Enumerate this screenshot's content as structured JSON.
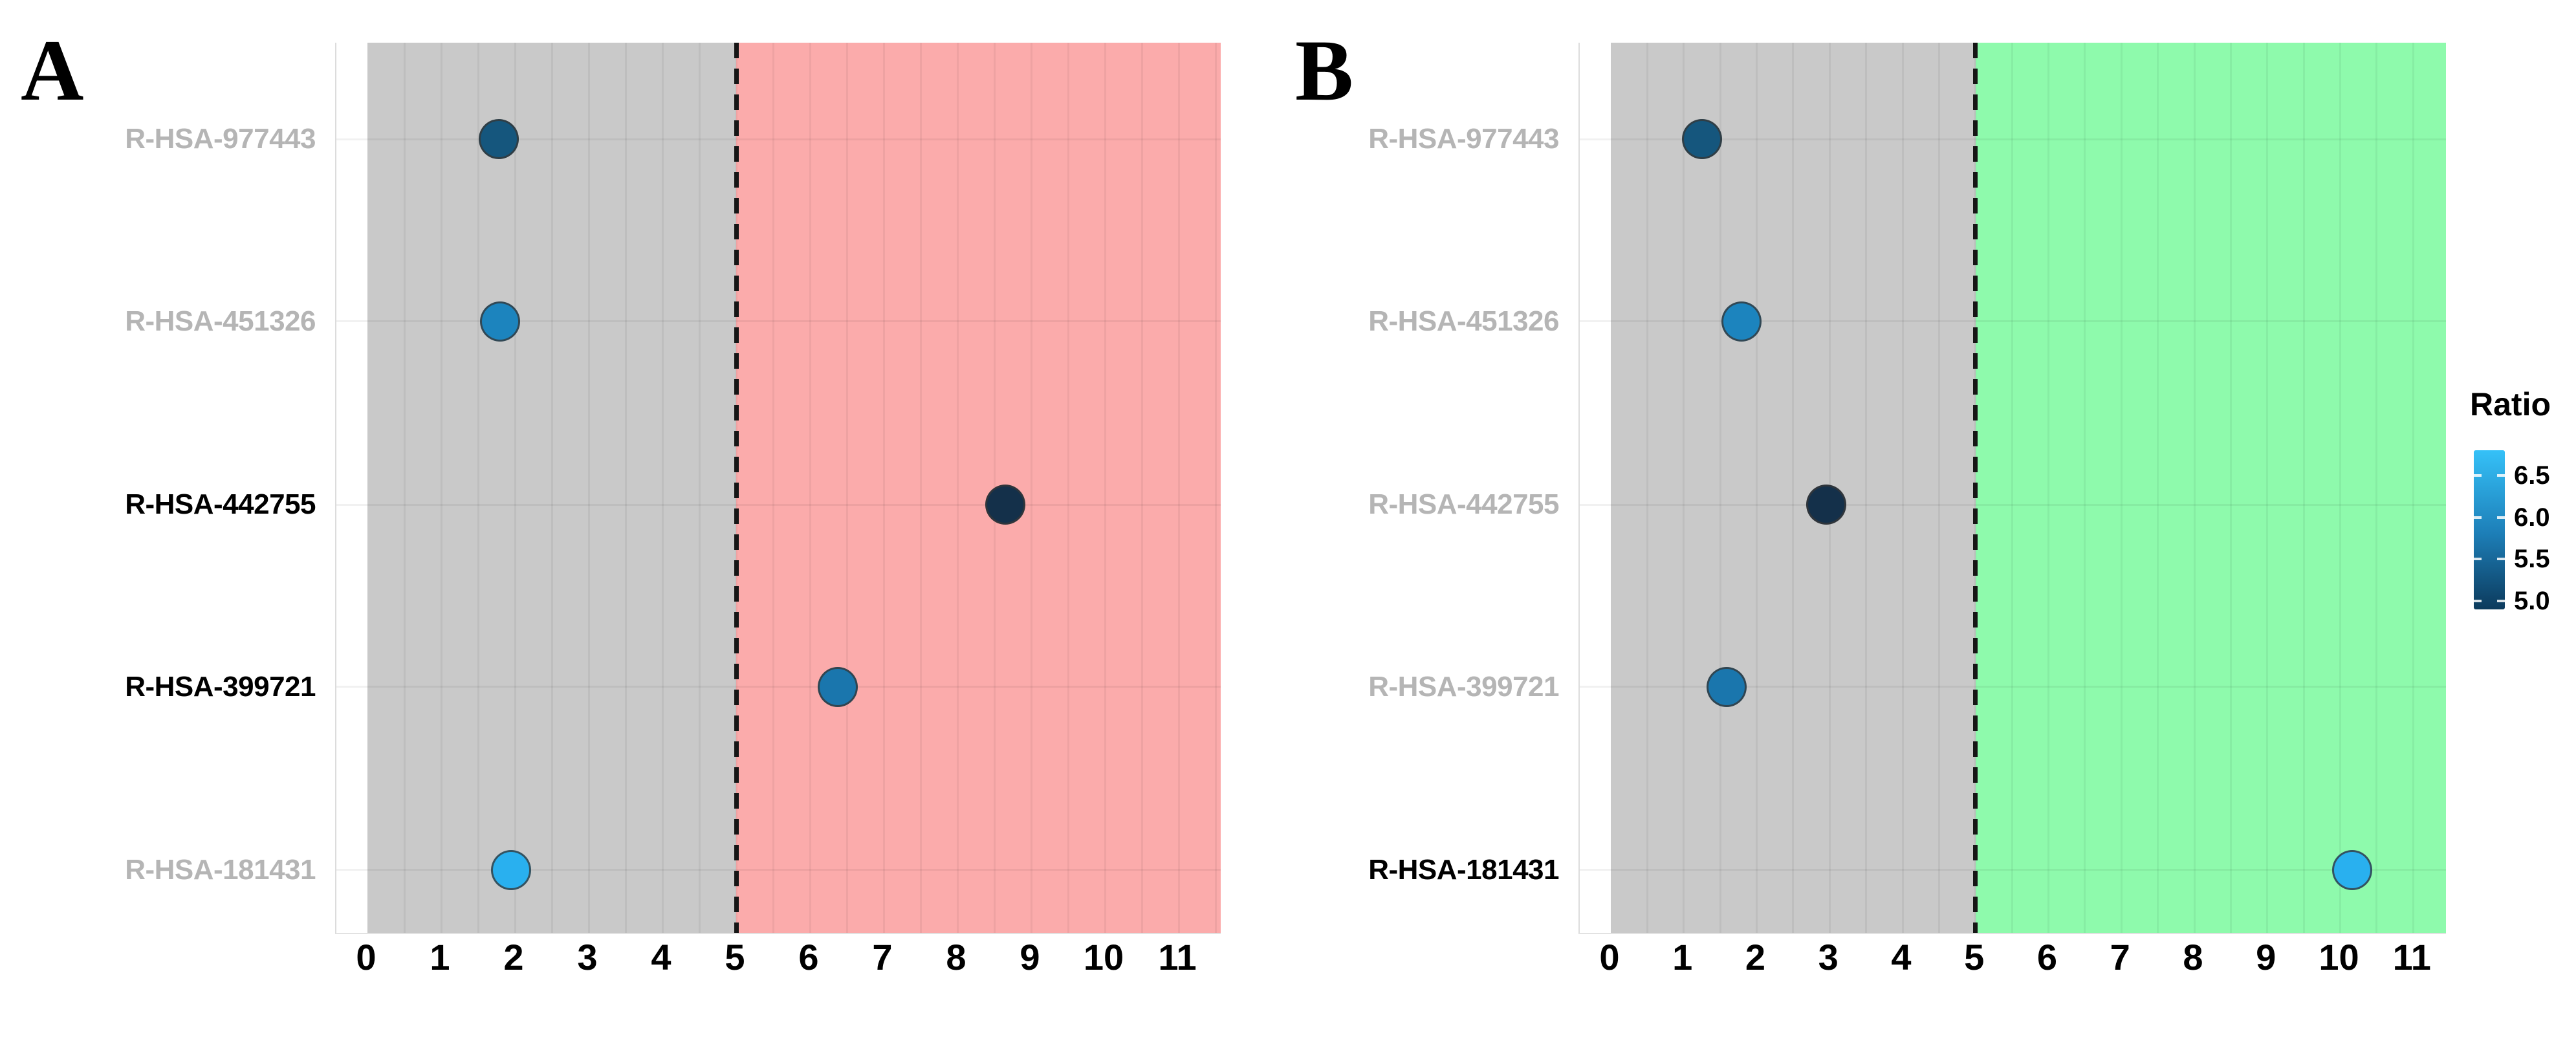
{
  "figure": {
    "background_color": "#ffffff",
    "legend": {
      "title": "Ratio",
      "ticks": [
        "6.5",
        "6.0",
        "5.5",
        "5.0"
      ],
      "bar_max": 6.8,
      "bar_min": 4.9,
      "gradient_top_color": "#35c1f8",
      "gradient_mid_color": "#1d7fb8",
      "gradient_bottom_color": "#0c3a5c"
    }
  },
  "chart_data": [
    {
      "type": "scatter",
      "panel_label": "A",
      "title": "",
      "xlabel": "",
      "ylabel": "",
      "x_ticks": [
        "0",
        "1",
        "2",
        "3",
        "4",
        "5",
        "6",
        "7",
        "8",
        "9",
        "10",
        "11"
      ],
      "xlim": [
        0,
        11
      ],
      "threshold_x": 5,
      "threshold_style": "black-dashed",
      "base_region": {
        "from": 0,
        "to": 5,
        "color": "#c9c9c9"
      },
      "highlight_region": {
        "from": 5,
        "to": "end",
        "color": "#fbabab"
      },
      "grid": "on",
      "categories": [
        "R-HSA-977443",
        "R-HSA-451326",
        "R-HSA-442755",
        "R-HSA-399721",
        "R-HSA-181431"
      ],
      "emphasized_categories": [
        "R-HSA-442755",
        "R-HSA-399721"
      ],
      "points": [
        {
          "pathway": "R-HSA-977443",
          "x": 1.78,
          "ratio": 5.4,
          "color": "#15567d",
          "emphasized": false
        },
        {
          "pathway": "R-HSA-451326",
          "x": 1.8,
          "ratio": 6.1,
          "color": "#1c84be",
          "emphasized": false
        },
        {
          "pathway": "R-HSA-442755",
          "x": 8.65,
          "ratio": 5.0,
          "color": "#14304a",
          "emphasized": true
        },
        {
          "pathway": "R-HSA-399721",
          "x": 6.38,
          "ratio": 5.9,
          "color": "#1a76ad",
          "emphasized": true
        },
        {
          "pathway": "R-HSA-181431",
          "x": 1.95,
          "ratio": 6.6,
          "color": "#29b0ef",
          "emphasized": false
        }
      ]
    },
    {
      "type": "scatter",
      "panel_label": "B",
      "title": "",
      "xlabel": "",
      "ylabel": "",
      "x_ticks": [
        "0",
        "1",
        "2",
        "3",
        "4",
        "5",
        "6",
        "7",
        "8",
        "9",
        "10",
        "11"
      ],
      "xlim": [
        0,
        11
      ],
      "threshold_x": 5,
      "threshold_style": "black-dashed",
      "base_region": {
        "from": 0,
        "to": 5,
        "color": "#c9c9c9"
      },
      "highlight_region": {
        "from": 5,
        "to": "end",
        "color": "#8efaac"
      },
      "grid": "on",
      "categories": [
        "R-HSA-977443",
        "R-HSA-451326",
        "R-HSA-442755",
        "R-HSA-399721",
        "R-HSA-181431"
      ],
      "emphasized_categories": [
        "R-HSA-181431"
      ],
      "points": [
        {
          "pathway": "R-HSA-977443",
          "x": 1.25,
          "ratio": 5.4,
          "color": "#15567d",
          "emphasized": false
        },
        {
          "pathway": "R-HSA-451326",
          "x": 1.79,
          "ratio": 6.1,
          "color": "#1c84be",
          "emphasized": false
        },
        {
          "pathway": "R-HSA-442755",
          "x": 2.95,
          "ratio": 5.0,
          "color": "#14304a",
          "emphasized": false
        },
        {
          "pathway": "R-HSA-399721",
          "x": 1.59,
          "ratio": 5.9,
          "color": "#1a76ad",
          "emphasized": false
        },
        {
          "pathway": "R-HSA-181431",
          "x": 10.16,
          "ratio": 6.6,
          "color": "#29b0ef",
          "emphasized": true
        }
      ]
    }
  ],
  "label_colors": {
    "emphasized": "#000000",
    "normal": "#b5b5b5"
  }
}
